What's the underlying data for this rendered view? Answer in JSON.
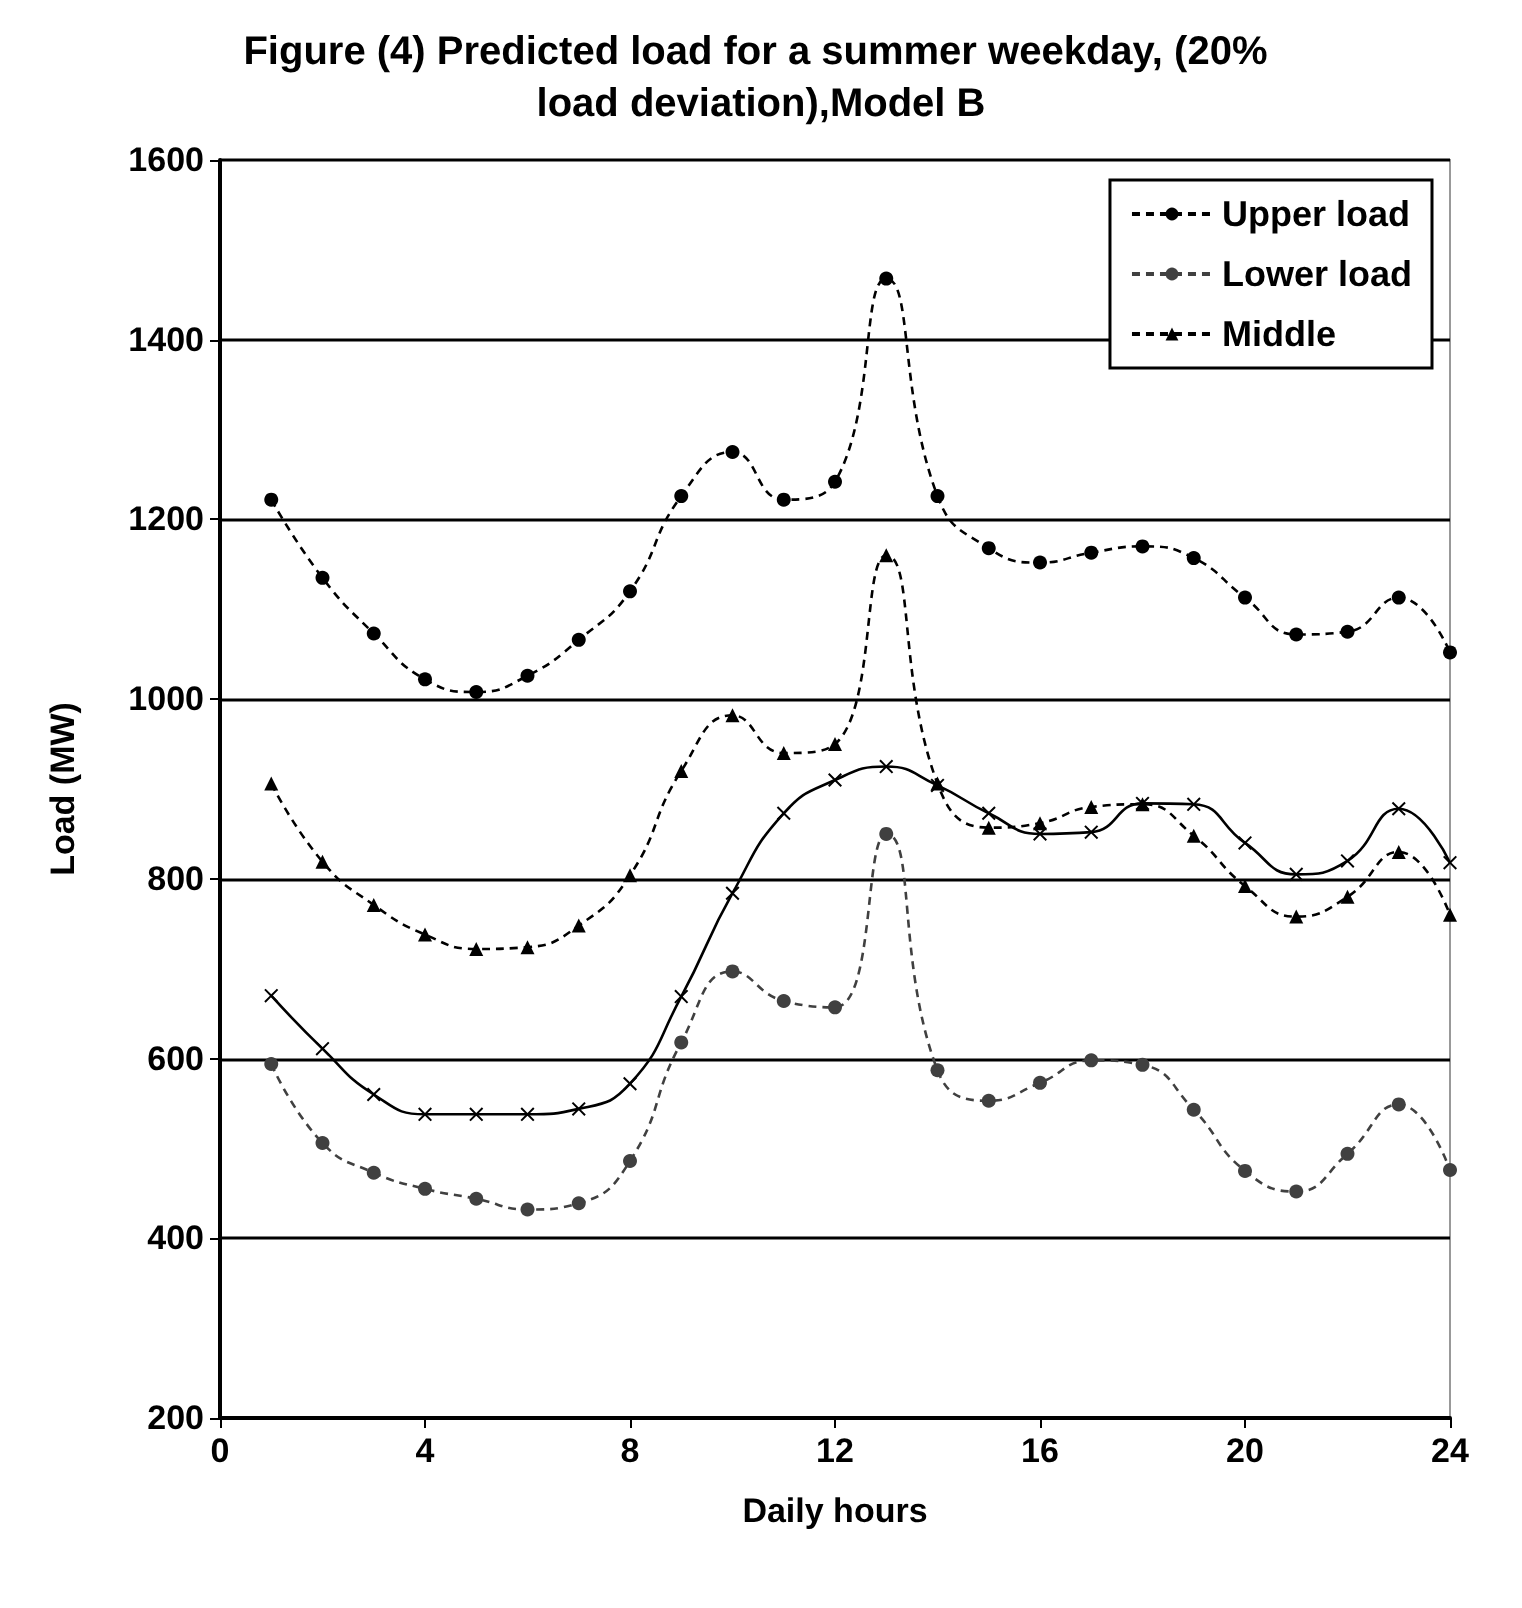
{
  "chart_data": {
    "type": "line",
    "title": "Figure (4) Predicted load for a summer weekday, (20% load deviation),Model B",
    "xlabel": "Daily hours",
    "ylabel": "Load (MW)",
    "x": [
      1,
      2,
      3,
      4,
      5,
      6,
      7,
      8,
      9,
      10,
      11,
      12,
      13,
      14,
      15,
      16,
      17,
      18,
      19,
      20,
      21,
      22,
      23,
      24
    ],
    "series": [
      {
        "name": "Upper load",
        "color": "#000000",
        "marker": "circle",
        "line_style": "dashed",
        "values": [
          1222,
          1135,
          1073,
          1022,
          1008,
          1026,
          1066,
          1120,
          1226,
          1275,
          1222,
          1242,
          1468,
          1226,
          1168,
          1152,
          1163,
          1170,
          1157,
          1113,
          1072,
          1075,
          1113,
          1052
        ]
      },
      {
        "name": "Lower load",
        "color": "#404040",
        "marker": "circle",
        "line_style": "dashed",
        "values": [
          594,
          506,
          473,
          455,
          444,
          432,
          439,
          486,
          618,
          697,
          664,
          657,
          850,
          587,
          553,
          573,
          598,
          593,
          543,
          475,
          452,
          494,
          549,
          476
        ]
      },
      {
        "name": "Middle",
        "color": "#000000",
        "marker": "triangle",
        "line_style": "dashed",
        "values": [
          906,
          819,
          771,
          738,
          722,
          724,
          748,
          804,
          920,
          982,
          940,
          950,
          1160,
          906,
          857,
          862,
          880,
          883,
          848,
          792,
          758,
          780,
          830,
          760
        ]
      },
      {
        "color": "#000000",
        "marker": "cross",
        "line_style": "solid",
        "values": [
          670,
          611,
          560,
          538,
          538,
          538,
          544,
          572,
          669,
          784,
          873,
          910,
          925,
          904,
          873,
          850,
          852,
          884,
          883,
          840,
          805,
          820,
          878,
          818
        ]
      }
    ],
    "xlim": [
      0,
      24
    ],
    "xticks": [
      0,
      4,
      8,
      12,
      16,
      20,
      24
    ],
    "ylim": [
      200,
      1600
    ],
    "yticks": [
      200,
      400,
      600,
      800,
      1000,
      1200,
      1400,
      1600
    ],
    "grid": "y",
    "legend": "top right"
  }
}
